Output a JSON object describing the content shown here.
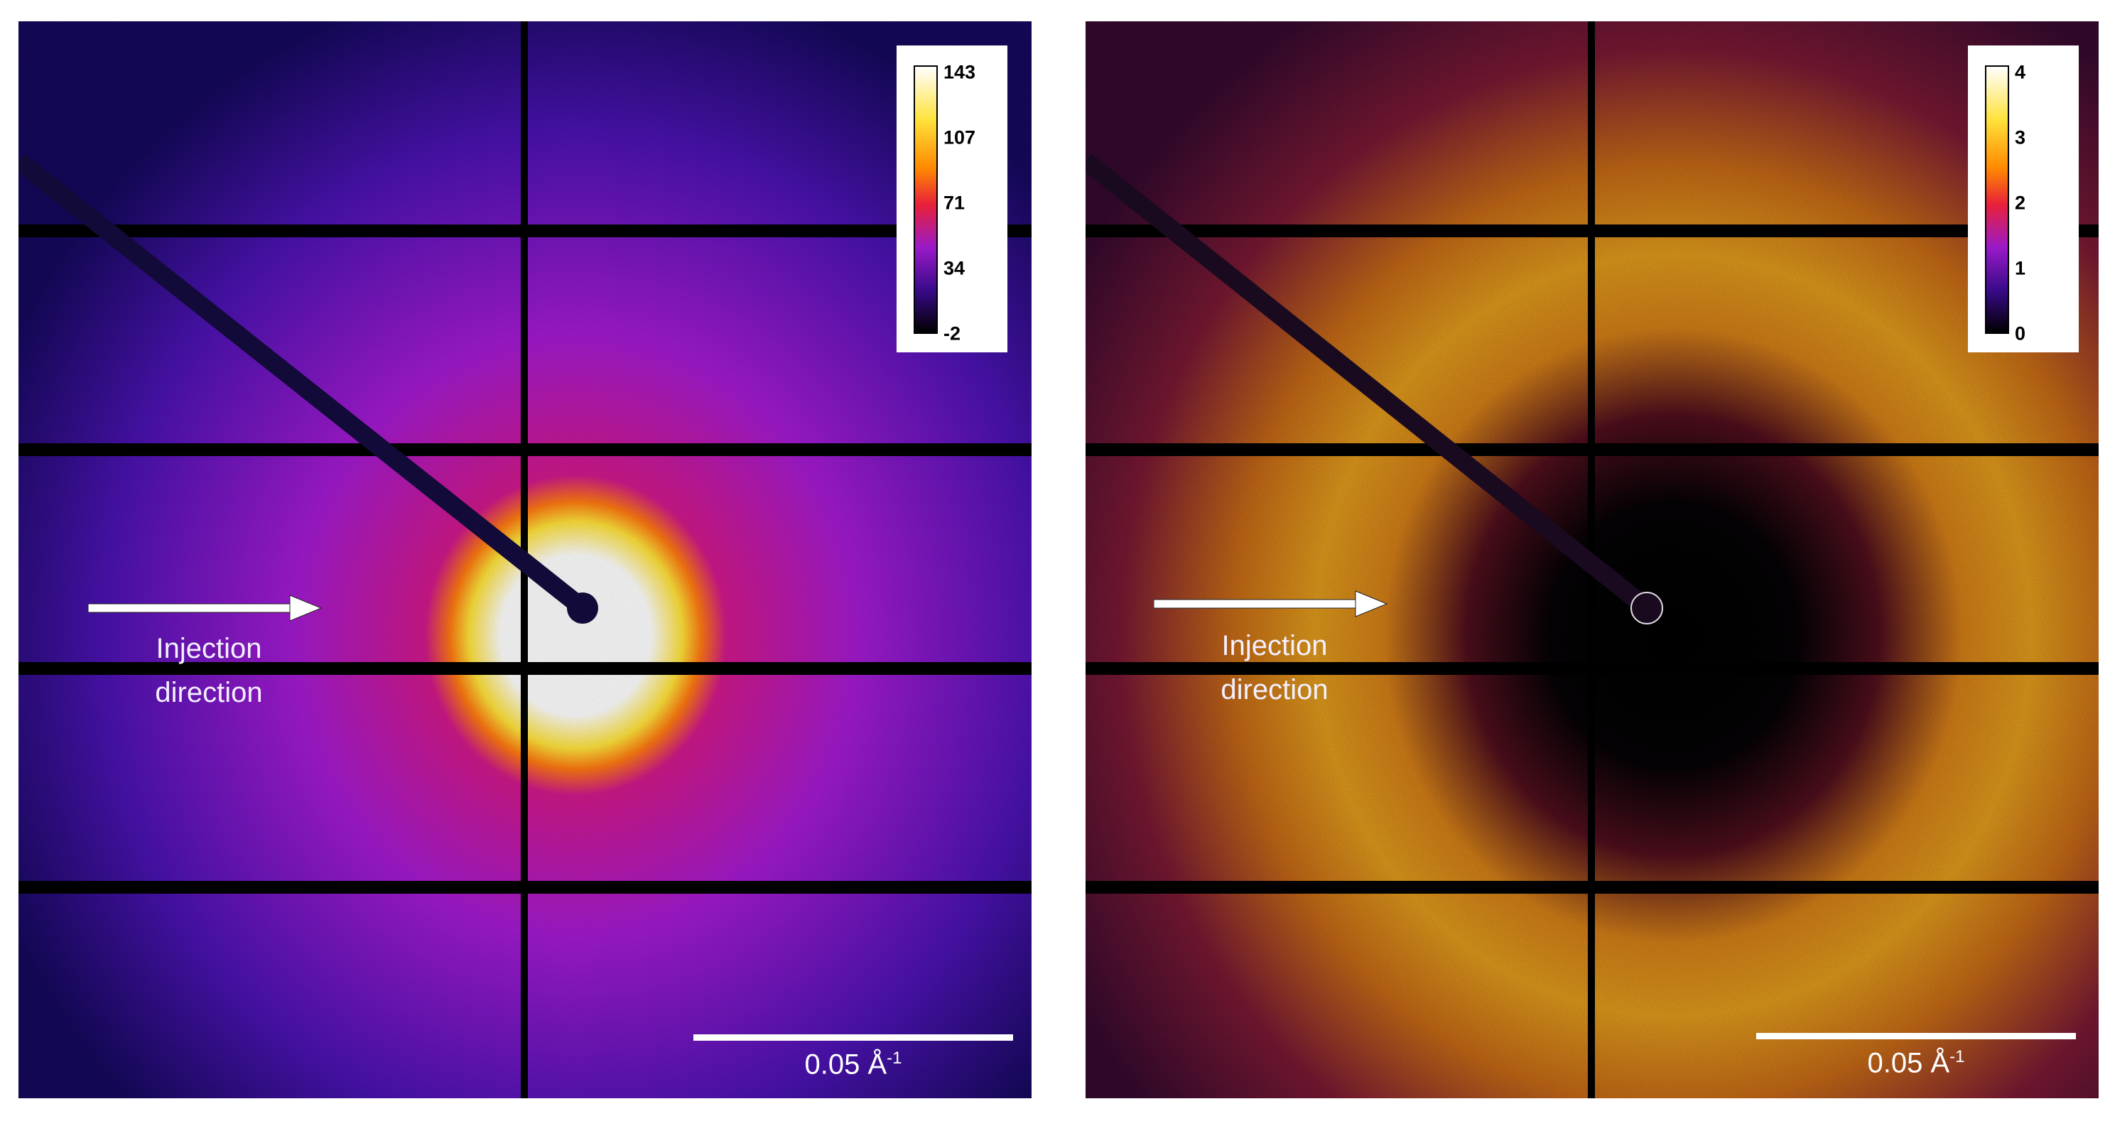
{
  "panels": [
    {
      "id": "left",
      "colorbar": {
        "ticks": [
          "143",
          "107",
          "71",
          "34",
          "-2"
        ]
      },
      "annotation": {
        "line1": "Injection",
        "line2": "direction"
      },
      "scalebar": {
        "value": "0.05 Å",
        "exponent": "-1"
      }
    },
    {
      "id": "right",
      "colorbar": {
        "ticks": [
          "4",
          "3",
          "2",
          "1",
          "0"
        ]
      },
      "annotation": {
        "line1": "Injection",
        "line2": "direction"
      },
      "scalebar": {
        "value": "0.05 Å",
        "exponent": "-1"
      }
    }
  ],
  "colors": {
    "colormap": [
      "#000000",
      "#3a0a8a",
      "#9a1ac8",
      "#e8203a",
      "#ff8a00",
      "#ffe23a",
      "#ffffff"
    ],
    "detector_gap": "#000000"
  }
}
